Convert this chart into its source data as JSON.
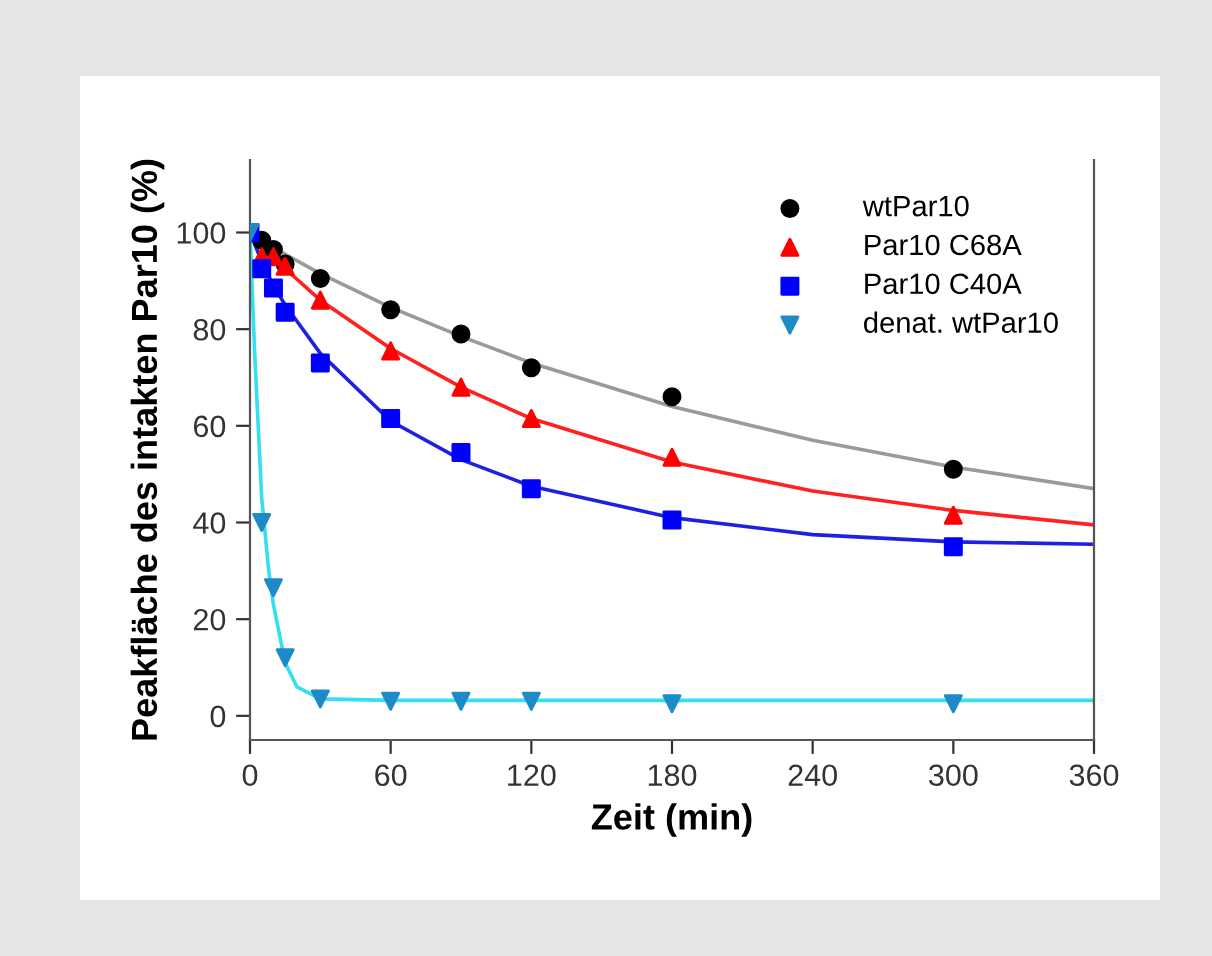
{
  "chart_data": {
    "type": "scatter",
    "xlabel": "Zeit (min)",
    "ylabel": "Peakfläche des intakten Par10 (%)",
    "x": [
      0,
      5,
      10,
      15,
      30,
      60,
      90,
      120,
      180,
      300
    ],
    "xlim": [
      0,
      360
    ],
    "xticks": [
      0,
      60,
      120,
      180,
      240,
      300,
      360
    ],
    "ylim": [
      -5,
      115
    ],
    "yticks": [
      0,
      20,
      40,
      60,
      80,
      100
    ],
    "grid": false,
    "legend": "top right",
    "series": [
      {
        "name": "wtPar10",
        "color": "#000000",
        "marker": "circle",
        "values": [
          null,
          98.4,
          96.5,
          93.5,
          90.5,
          84,
          79,
          72,
          66,
          51
        ]
      },
      {
        "name": "Par10 C68A",
        "color": "#ff0000",
        "marker": "triangle",
        "values": [
          null,
          95,
          95,
          93,
          86,
          75.5,
          68,
          61.5,
          53.5,
          41.5
        ]
      },
      {
        "name": "Par10 C40A",
        "color": "#0000ff",
        "marker": "square",
        "values": [
          100,
          92.5,
          88.5,
          83.5,
          73,
          61.5,
          54.5,
          47,
          40.5,
          35
        ]
      },
      {
        "name": "denat. wtPar10",
        "color": "#1f8ac8",
        "marker": "triangle_down",
        "values": [
          100,
          40,
          26.5,
          12,
          3.5,
          3,
          3,
          3,
          2.5,
          2.5
        ]
      },
      {
        "type": "line",
        "color": "#9a9a9a",
        "x": [
          0,
          15,
          30,
          60,
          90,
          120,
          180,
          240,
          300,
          360
        ],
        "values": [
          100,
          95.5,
          91.5,
          84.5,
          78.5,
          73,
          64,
          57,
          51.5,
          47
        ]
      },
      {
        "type": "line",
        "color": "#ff2020",
        "x": [
          0,
          15,
          30,
          60,
          90,
          120,
          180,
          240,
          300,
          360
        ],
        "values": [
          100,
          92.5,
          86,
          76,
          68,
          61.5,
          52.5,
          46.5,
          42.5,
          39.5
        ]
      },
      {
        "type": "line",
        "color": "#2020e0",
        "x": [
          0,
          5,
          10,
          15,
          30,
          60,
          90,
          120,
          180,
          240,
          300,
          360
        ],
        "values": [
          100,
          94,
          89,
          85,
          75,
          61,
          53,
          47.5,
          41,
          37.5,
          36,
          35.5
        ]
      },
      {
        "type": "line",
        "color": "#33e0f0",
        "x": [
          0,
          2,
          5,
          8,
          10,
          15,
          20,
          30,
          60,
          360
        ],
        "values": [
          100,
          75,
          45,
          30,
          23,
          11,
          6,
          3.5,
          3.2,
          3.2
        ]
      }
    ]
  }
}
